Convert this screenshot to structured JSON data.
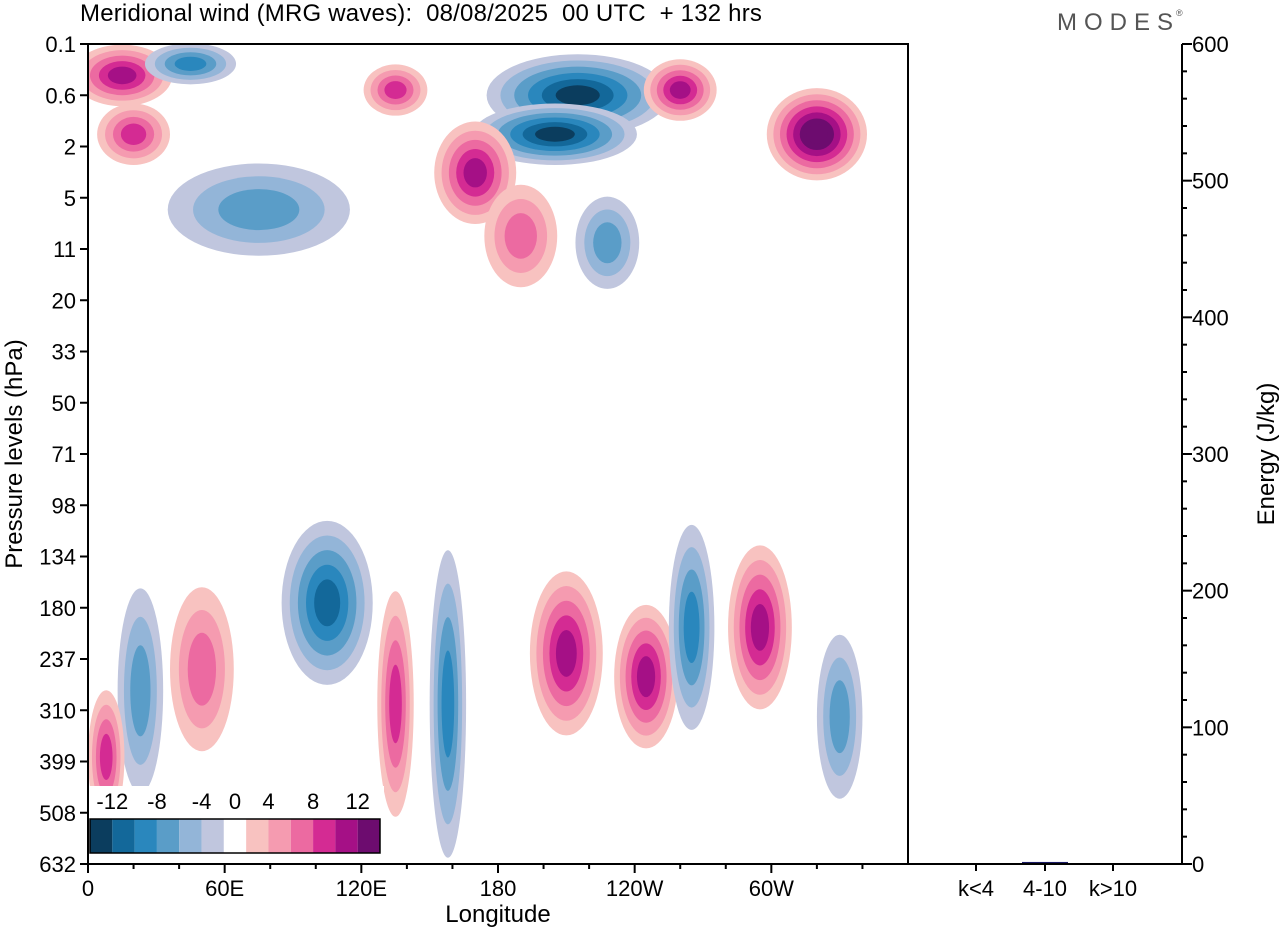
{
  "header": {
    "title": "Meridional wind (MRG waves):  08/08/2025  00 UTC  + 132 hrs",
    "logo": "MODES",
    "logo_mark": "®"
  },
  "chart_data": [
    {
      "type": "heatmap",
      "title": "Meridional wind (MRG waves):  08/08/2025  00 UTC  + 132 hrs",
      "xlabel": "Longitude",
      "ylabel": "Pressure levels (hPa)",
      "x_tick_labels": [
        "0",
        "60E",
        "120E",
        "180",
        "120W",
        "60W"
      ],
      "x_tick_values_deg_east": [
        0,
        60,
        120,
        180,
        240,
        300
      ],
      "xlim_deg_east": [
        0,
        360
      ],
      "y_tick_labels": [
        "0.1",
        "0.6",
        "2",
        "5",
        "11",
        "20",
        "33",
        "50",
        "71",
        "98",
        "134",
        "180",
        "237",
        "310",
        "399",
        "508",
        "632"
      ],
      "colorbar": {
        "labels": [
          "-12",
          "-8",
          "-4",
          "0",
          "4",
          "8",
          "12"
        ],
        "label_values": [
          -12,
          -8,
          -4,
          0,
          4,
          8,
          12
        ],
        "levels": [
          -14,
          -12,
          -10,
          -8,
          -6,
          -4,
          -2,
          2,
          4,
          6,
          8,
          10,
          12,
          14
        ],
        "colors": [
          "#0b3d5e",
          "#13689a",
          "#2a87bd",
          "#5a9dc8",
          "#93b5d8",
          "#c0c6de",
          "#ffffff",
          "#f8c2c0",
          "#f59bb0",
          "#ec6aa1",
          "#d42b93",
          "#a51086",
          "#6d0c6f"
        ]
      },
      "regions": [
        {
          "lon": 15,
          "lev": 0.3,
          "w": 22,
          "h": 0.6,
          "value": 10
        },
        {
          "lon": 45,
          "lev": 0.2,
          "w": 20,
          "h": 0.4,
          "value": -8
        },
        {
          "lon": 135,
          "lev": 0.5,
          "w": 14,
          "h": 0.5,
          "value": 8
        },
        {
          "lon": 215,
          "lev": 0.6,
          "w": 40,
          "h": 0.8,
          "value": -13
        },
        {
          "lon": 205,
          "lev": 1.5,
          "w": 36,
          "h": 0.6,
          "value": -13
        },
        {
          "lon": 260,
          "lev": 0.5,
          "w": 16,
          "h": 0.6,
          "value": 10
        },
        {
          "lon": 320,
          "lev": 1.5,
          "w": 22,
          "h": 0.9,
          "value": 14
        },
        {
          "lon": 170,
          "lev": 3.2,
          "w": 18,
          "h": 1.0,
          "value": 10
        },
        {
          "lon": 20,
          "lev": 1.5,
          "w": 16,
          "h": 0.6,
          "value": 8
        },
        {
          "lon": 75,
          "lev": 6,
          "w": 40,
          "h": 0.9,
          "value": -6
        },
        {
          "lon": 228,
          "lev": 10,
          "w": 14,
          "h": 0.9,
          "value": -6
        },
        {
          "lon": 190,
          "lev": 9,
          "w": 16,
          "h": 1.0,
          "value": 6
        },
        {
          "lon": 105,
          "lev": 175,
          "w": 20,
          "h": 1.6,
          "value": -10
        },
        {
          "lon": 158,
          "lev": 300,
          "w": 8,
          "h": 3.0,
          "value": -8
        },
        {
          "lon": 210,
          "lev": 230,
          "w": 16,
          "h": 1.6,
          "value": 10
        },
        {
          "lon": 245,
          "lev": 260,
          "w": 14,
          "h": 1.4,
          "value": 10
        },
        {
          "lon": 265,
          "lev": 200,
          "w": 10,
          "h": 2.0,
          "value": -8
        },
        {
          "lon": 295,
          "lev": 200,
          "w": 14,
          "h": 1.6,
          "value": 10
        },
        {
          "lon": 50,
          "lev": 250,
          "w": 14,
          "h": 1.6,
          "value": 6
        },
        {
          "lon": 23,
          "lev": 280,
          "w": 10,
          "h": 2.0,
          "value": -6
        },
        {
          "lon": 8,
          "lev": 390,
          "w": 8,
          "h": 1.3,
          "value": 8
        },
        {
          "lon": 135,
          "lev": 300,
          "w": 8,
          "h": 2.2,
          "value": 8
        },
        {
          "lon": 330,
          "lev": 320,
          "w": 10,
          "h": 1.6,
          "value": -6
        }
      ]
    },
    {
      "type": "bar",
      "ylabel": "Energy (J/kg)",
      "categories": [
        "k<4",
        "4-10",
        "k>10"
      ],
      "values": [
        0.2,
        1.5,
        0.3
      ],
      "ylim": [
        0,
        600
      ],
      "y_tick_labels": [
        "0",
        "100",
        "200",
        "300",
        "400",
        "500",
        "600"
      ],
      "bar_color": "#1a1a66"
    }
  ]
}
